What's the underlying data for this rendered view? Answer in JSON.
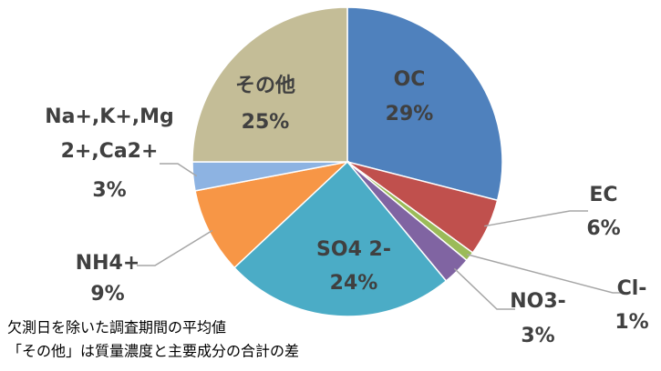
{
  "chart_data": {
    "type": "pie",
    "categories": [
      "OC",
      "EC",
      "Cl-",
      "NO3-",
      "SO4 2-",
      "NH4+",
      "Na+,K+,Mg2+,Ca2+",
      "その他"
    ],
    "values": [
      29,
      6,
      1,
      3,
      24,
      9,
      3,
      25
    ],
    "value_labels": [
      "29%",
      "6%",
      "1%",
      "3%",
      "24%",
      "9%",
      "3%",
      "25%"
    ],
    "colors": [
      "#4f81bd",
      "#c0504d",
      "#9bbb59",
      "#8064a2",
      "#4bacc6",
      "#f79646",
      "#8db3e2",
      "#c4bd97"
    ],
    "notes": [
      "欠測日を除いた調査期間の平均値",
      "「その他」は質量濃度と主要成分の合計の差"
    ]
  }
}
